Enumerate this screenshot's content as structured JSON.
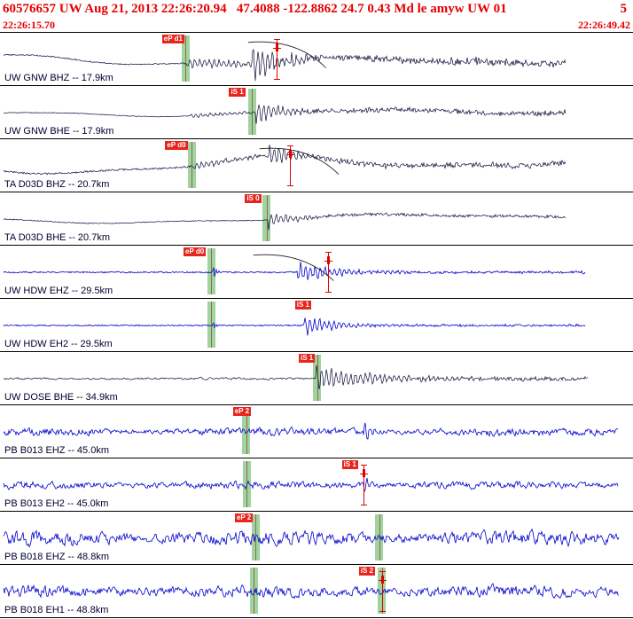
{
  "header": {
    "event_line": "60576657 UW Aug 21, 2013 22:26:20.94   47.4088 -122.8862 24.7 0.43 Md le amyw UW 01",
    "flag": "5",
    "window_start": "22:26:15.70",
    "window_end": "22:26:49.42"
  },
  "colors": {
    "header_text": "#e60000",
    "dark_trace": "#0b0b38",
    "blue_trace": "#0000cd",
    "pick_band": "rgba(142,203,142,0.85)",
    "pick_flag_bg": "#e8251d",
    "pick_flag_text": "#ffffff",
    "marker": "#e00000",
    "arc": "#1a1a1a",
    "divider": "#000000",
    "label_text": "#00002e"
  },
  "traces": [
    {
      "label": "UW GNW BHZ -- 17.9km",
      "color_key": "dark_trace",
      "picks": [
        {
          "text": "eP d1",
          "label_x": 0.256
        }
      ],
      "bands": [
        0.293
      ],
      "marker_x": 0.437,
      "arc": {
        "x0": 0.392,
        "x1": 0.515
      },
      "wave": {
        "kind": "smooth",
        "amp": 7,
        "end": 0.894,
        "seed": 11,
        "bursts": [
          {
            "x": 0.295,
            "amp": 7,
            "decay": 90,
            "tail": 2
          },
          {
            "x": 0.398,
            "amp": 24,
            "decay": 28,
            "tail": 3
          }
        ]
      }
    },
    {
      "label": "UW GNW BHE -- 17.9km",
      "color_key": "dark_trace",
      "picks": [
        {
          "text": "iS 1",
          "label_x": 0.362
        }
      ],
      "bands": [
        0.398
      ],
      "marker_x": null,
      "arc": null,
      "wave": {
        "kind": "smooth",
        "amp": 4,
        "end": 0.894,
        "seed": 22,
        "bursts": [
          {
            "x": 0.3,
            "amp": 3,
            "decay": 80,
            "tail": 1
          },
          {
            "x": 0.402,
            "amp": 15,
            "decay": 26,
            "tail": 2.2
          }
        ]
      }
    },
    {
      "label": "TA D03D BHZ -- 20.7km",
      "color_key": "dark_trace",
      "picks": [
        {
          "text": "eP d0",
          "label_x": 0.261
        }
      ],
      "bands": [
        0.303
      ],
      "marker_x": 0.458,
      "arc": {
        "x0": 0.41,
        "x1": 0.535
      },
      "wave": {
        "kind": "smooth",
        "amp": 11,
        "end": 0.893,
        "seed": 33,
        "bursts": [
          {
            "x": 0.305,
            "amp": 5,
            "decay": 70,
            "tail": 1.5
          },
          {
            "x": 0.425,
            "amp": 16,
            "decay": 24,
            "tail": 2
          }
        ]
      }
    },
    {
      "label": "TA D03D BHE -- 20.7km",
      "color_key": "dark_trace",
      "picks": [
        {
          "text": "iS 0",
          "label_x": 0.387
        }
      ],
      "bands": [
        0.421
      ],
      "marker_x": null,
      "arc": null,
      "wave": {
        "kind": "smooth",
        "amp": 5,
        "end": 0.893,
        "seed": 44,
        "bursts": [
          {
            "x": 0.424,
            "amp": 13,
            "decay": 20,
            "tail": 1.5
          }
        ]
      }
    },
    {
      "label": "UW HDW EHZ -- 29.5km",
      "color_key": "blue_trace",
      "picks": [
        {
          "text": "eP d0",
          "label_x": 0.29
        }
      ],
      "bands": [
        0.334
      ],
      "marker_x": 0.518,
      "arc": {
        "x0": 0.4,
        "x1": 0.527
      },
      "wave": {
        "kind": "flat",
        "amp": 0.8,
        "end": 0.925,
        "seed": 55,
        "blips": [
          {
            "x": 0.336,
            "amp": 10
          }
        ],
        "bursts": [
          {
            "x": 0.468,
            "amp": 16,
            "decay": 40,
            "tail": 1.2
          }
        ]
      }
    },
    {
      "label": "UW HDW EH2 -- 29.5km",
      "color_key": "blue_trace",
      "picks": [
        {
          "text": "iS 1",
          "label_x": 0.466
        }
      ],
      "bands": [
        0.334
      ],
      "marker_x": null,
      "arc": null,
      "wave": {
        "kind": "flat",
        "amp": 0.7,
        "end": 0.925,
        "seed": 66,
        "blips": [
          {
            "x": 0.336,
            "amp": 4
          }
        ],
        "bursts": [
          {
            "x": 0.479,
            "amp": 14,
            "decay": 35,
            "tail": 1
          }
        ]
      }
    },
    {
      "label": "UW DOSE BHE -- 34.9km",
      "color_key": "dark_trace",
      "picks": [
        {
          "text": "iS 1",
          "label_x": 0.472
        }
      ],
      "bands": [
        0.501
      ],
      "marker_x": null,
      "arc": null,
      "wave": {
        "kind": "noisy",
        "amp": 2.2,
        "end": 0.928,
        "seed": 77,
        "bursts": [
          {
            "x": 0.499,
            "amp": 16,
            "decay": 60,
            "tail": 2
          }
        ]
      }
    },
    {
      "label": "PB B013 EHZ -- 45.0km",
      "color_key": "blue_trace",
      "picks": [
        {
          "text": "eP 2",
          "label_x": 0.368
        }
      ],
      "bands": [
        0.389
      ],
      "marker_x": null,
      "arc": null,
      "wave": {
        "kind": "noisy",
        "amp": 7,
        "end": 0.976,
        "seed": 88,
        "bursts": [
          {
            "x": 0.573,
            "amp": 24,
            "decay": 5,
            "tail": 0
          }
        ]
      }
    },
    {
      "label": "PB B013 EH2 -- 45.0km",
      "color_key": "blue_trace",
      "picks": [
        {
          "text": "iS 1",
          "label_x": 0.54
        }
      ],
      "bands": [
        0.39
      ],
      "marker_x": 0.574,
      "arc": null,
      "wave": {
        "kind": "noisy",
        "amp": 7,
        "end": 0.976,
        "seed": 99,
        "bursts": [
          {
            "x": 0.573,
            "amp": 18,
            "decay": 5,
            "tail": 0
          }
        ]
      }
    },
    {
      "label": "PB B018 EHZ -- 48.8km",
      "color_key": "blue_trace",
      "picks": [
        {
          "text": "eP 2",
          "label_x": 0.371
        }
      ],
      "bands": [
        0.404,
        0.599
      ],
      "marker_x": null,
      "arc": null,
      "wave": {
        "kind": "noisy",
        "amp": 13,
        "end": 0.978,
        "seed": 110,
        "bursts": []
      }
    },
    {
      "label": "PB B018 EH1 -- 48.8km",
      "color_key": "blue_trace",
      "picks": [
        {
          "text": "iS 2",
          "label_x": 0.567
        }
      ],
      "bands": [
        0.401,
        0.603
      ],
      "marker_x": 0.603,
      "arc": null,
      "wave": {
        "kind": "noisy",
        "amp": 11,
        "end": 0.978,
        "seed": 121,
        "bursts": []
      }
    }
  ]
}
